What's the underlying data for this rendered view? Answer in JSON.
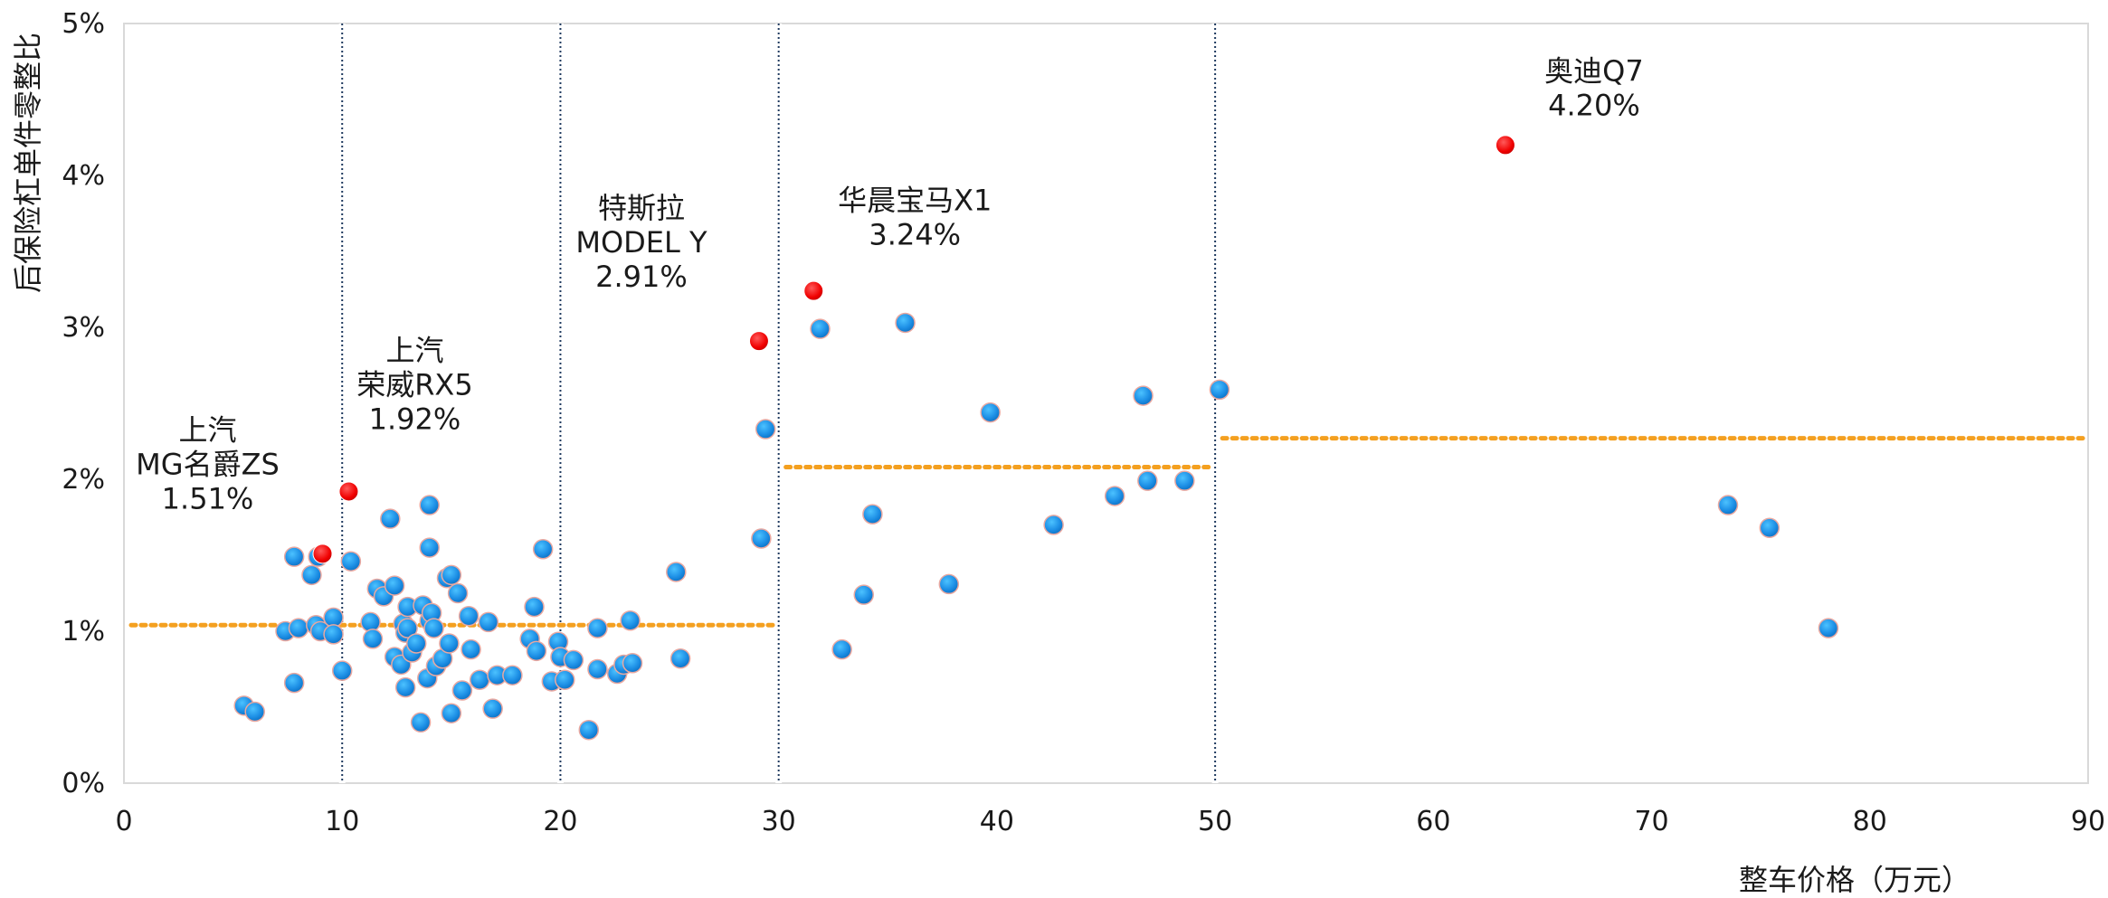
{
  "chart_data": {
    "type": "scatter",
    "xlabel": "整车价格（万元）",
    "ylabel": "后保险杠单件零整比",
    "xlim": [
      0,
      90
    ],
    "ylim": [
      0,
      5
    ],
    "x_ticks": [
      "0",
      "10",
      "20",
      "30",
      "40",
      "50",
      "60",
      "70",
      "80",
      "90"
    ],
    "y_ticks": [
      "0%",
      "1%",
      "2%",
      "3%",
      "4%",
      "5%"
    ],
    "grid": false,
    "colors": {
      "point": "#1e90e6",
      "highlight": "#ff0000",
      "average": "#f4a020",
      "divider": "#1f3a5f"
    },
    "segment_boundaries": [
      10,
      20,
      30,
      50
    ],
    "segment_averages": [
      {
        "x_range": [
          0,
          30
        ],
        "y": 1.04
      },
      {
        "x_range": [
          30,
          50
        ],
        "y": 2.08
      },
      {
        "x_range": [
          50,
          90
        ],
        "y": 2.27
      }
    ],
    "highlighted": [
      {
        "lines": [
          "上汽",
          "MG名爵ZS",
          "1.51%"
        ],
        "x": 9.1,
        "y": 1.51
      },
      {
        "lines": [
          "上汽",
          "荣威RX5",
          "1.92%"
        ],
        "x": 10.3,
        "y": 1.92
      },
      {
        "lines": [
          "特斯拉",
          "MODEL Y",
          "2.91%"
        ],
        "x": 29.1,
        "y": 2.91
      },
      {
        "lines": [
          "华晨宝马X1",
          "3.24%"
        ],
        "x": 31.6,
        "y": 3.24
      },
      {
        "lines": [
          "奥迪Q7",
          "4.20%"
        ],
        "x": 63.3,
        "y": 4.2
      }
    ],
    "points": [
      [
        5.5,
        0.51
      ],
      [
        6.0,
        0.47
      ],
      [
        7.4,
        1.0
      ],
      [
        7.8,
        0.66
      ],
      [
        7.8,
        1.49
      ],
      [
        8.0,
        1.02
      ],
      [
        8.6,
        1.37
      ],
      [
        8.8,
        1.04
      ],
      [
        8.9,
        1.49
      ],
      [
        9.0,
        1.0
      ],
      [
        9.6,
        1.09
      ],
      [
        9.6,
        0.98
      ],
      [
        10.0,
        0.74
      ],
      [
        10.4,
        1.46
      ],
      [
        11.3,
        1.06
      ],
      [
        11.4,
        0.95
      ],
      [
        11.6,
        1.28
      ],
      [
        11.9,
        1.23
      ],
      [
        12.2,
        1.74
      ],
      [
        12.4,
        1.3
      ],
      [
        12.4,
        0.83
      ],
      [
        12.7,
        0.78
      ],
      [
        12.8,
        1.05
      ],
      [
        12.9,
        0.99
      ],
      [
        12.9,
        0.63
      ],
      [
        13.0,
        1.16
      ],
      [
        13.0,
        1.02
      ],
      [
        13.2,
        0.86
      ],
      [
        13.4,
        0.92
      ],
      [
        13.6,
        0.4
      ],
      [
        13.7,
        1.17
      ],
      [
        13.9,
        0.69
      ],
      [
        14.0,
        1.55
      ],
      [
        14.0,
        1.07
      ],
      [
        14.0,
        1.83
      ],
      [
        14.1,
        1.12
      ],
      [
        14.2,
        1.02
      ],
      [
        14.3,
        0.77
      ],
      [
        14.6,
        0.82
      ],
      [
        14.8,
        1.35
      ],
      [
        14.9,
        0.92
      ],
      [
        15.0,
        1.37
      ],
      [
        15.0,
        0.46
      ],
      [
        15.3,
        1.25
      ],
      [
        15.5,
        0.61
      ],
      [
        15.8,
        1.1
      ],
      [
        15.9,
        0.88
      ],
      [
        16.3,
        0.68
      ],
      [
        16.7,
        1.06
      ],
      [
        16.9,
        0.49
      ],
      [
        17.1,
        0.71
      ],
      [
        17.8,
        0.71
      ],
      [
        18.6,
        0.95
      ],
      [
        18.8,
        1.16
      ],
      [
        18.9,
        0.87
      ],
      [
        19.2,
        1.54
      ],
      [
        19.6,
        0.67
      ],
      [
        19.9,
        0.93
      ],
      [
        20.0,
        0.83
      ],
      [
        20.2,
        0.68
      ],
      [
        20.6,
        0.81
      ],
      [
        21.3,
        0.35
      ],
      [
        21.7,
        0.75
      ],
      [
        21.7,
        1.02
      ],
      [
        22.6,
        0.72
      ],
      [
        22.9,
        0.78
      ],
      [
        23.2,
        1.07
      ],
      [
        23.3,
        0.79
      ],
      [
        25.3,
        1.39
      ],
      [
        25.5,
        0.82
      ],
      [
        29.2,
        1.61
      ],
      [
        29.4,
        2.33
      ],
      [
        31.9,
        2.99
      ],
      [
        32.9,
        0.88
      ],
      [
        33.9,
        1.24
      ],
      [
        34.3,
        1.77
      ],
      [
        35.8,
        3.03
      ],
      [
        37.8,
        1.31
      ],
      [
        39.7,
        2.44
      ],
      [
        42.6,
        1.7
      ],
      [
        45.4,
        1.89
      ],
      [
        46.7,
        2.55
      ],
      [
        46.9,
        1.99
      ],
      [
        48.6,
        1.99
      ],
      [
        50.2,
        2.59
      ],
      [
        73.5,
        1.83
      ],
      [
        75.4,
        1.68
      ],
      [
        78.1,
        1.02
      ]
    ]
  }
}
